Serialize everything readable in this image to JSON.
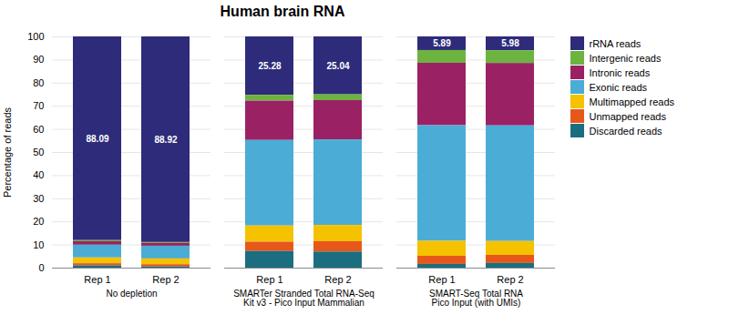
{
  "chart_data": {
    "type": "bar",
    "stacked": true,
    "title": "Human brain RNA",
    "ylabel": "Percentage of reads",
    "categories": [
      "Rep 1",
      "Rep 2",
      "Rep 1",
      "Rep 2",
      "Rep 1",
      "Rep 2"
    ],
    "groups": [
      "No depletion",
      "No depletion",
      "SMARTer Stranded Total RNA-Seq\nKit v3 - Pico Input Mammalian",
      "SMARTer Stranded Total RNA-Seq\nKit v3 - Pico Input Mammalian",
      "SMART-Seq Total RNA\nPico Input (with UMIs)",
      "SMART-Seq Total RNA\nPico Input (with UMIs)"
    ],
    "series": [
      {
        "name": "rRNA reads",
        "color": "#2e2b7a",
        "values": [
          88.09,
          88.92,
          25.28,
          25.04,
          5.89,
          5.98
        ],
        "data_labels": true
      },
      {
        "name": "Intergenic reads",
        "color": "#6db33f",
        "values": [
          0.5,
          0.4,
          2.5,
          2.5,
          5.5,
          5.5
        ]
      },
      {
        "name": "Intronic reads",
        "color": "#9b2165",
        "values": [
          1.5,
          1.2,
          17.0,
          17.0,
          27.0,
          27.0
        ]
      },
      {
        "name": "Exonic reads",
        "color": "#4bacd6",
        "values": [
          5.5,
          5.5,
          37.0,
          37.0,
          50.0,
          50.0
        ]
      },
      {
        "name": "Multimapped reads",
        "color": "#f5c200",
        "values": [
          2.5,
          2.5,
          7.0,
          7.0,
          6.5,
          6.0
        ]
      },
      {
        "name": "Unmapped reads",
        "color": "#e8571a",
        "values": [
          0.91,
          0.98,
          4.0,
          4.5,
          3.5,
          3.5
        ]
      },
      {
        "name": "Discarded reads",
        "color": "#1a6e80",
        "values": [
          1.0,
          0.5,
          7.22,
          6.96,
          1.61,
          2.02
        ]
      }
    ],
    "ylim": [
      0,
      100
    ],
    "yticks": [
      0,
      10,
      20,
      30,
      40,
      50,
      60,
      70,
      80,
      90,
      100
    ],
    "grid": true,
    "legend": "right"
  }
}
